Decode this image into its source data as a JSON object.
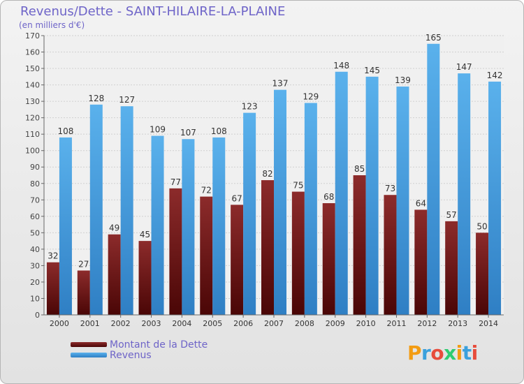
{
  "chart_data": {
    "type": "bar",
    "title": "Revenus/Dette - SAINT-HILAIRE-LA-PLAINE",
    "subtitle": "(en milliers d'€)",
    "categories": [
      "2000",
      "2001",
      "2002",
      "2003",
      "2004",
      "2005",
      "2006",
      "2007",
      "2008",
      "2009",
      "2010",
      "2011",
      "2012",
      "2013",
      "2014"
    ],
    "series": [
      {
        "name": "Montant de la Dette",
        "color": "#7a1f1f",
        "values": [
          32,
          27,
          49,
          45,
          77,
          72,
          67,
          82,
          75,
          68,
          85,
          73,
          64,
          57,
          50
        ]
      },
      {
        "name": "Revenus",
        "color": "#4fa3e3",
        "values": [
          108,
          128,
          127,
          109,
          107,
          108,
          123,
          137,
          129,
          148,
          145,
          139,
          165,
          147,
          142
        ]
      }
    ],
    "ylim": [
      0,
      170
    ],
    "ytick_step": 10,
    "grid": true,
    "legend": "bottom-left"
  },
  "logo": {
    "text": "Proxiti",
    "colors": [
      "#f39c12",
      "#3aa0dc",
      "#e74c3c",
      "#2ecc71"
    ]
  }
}
